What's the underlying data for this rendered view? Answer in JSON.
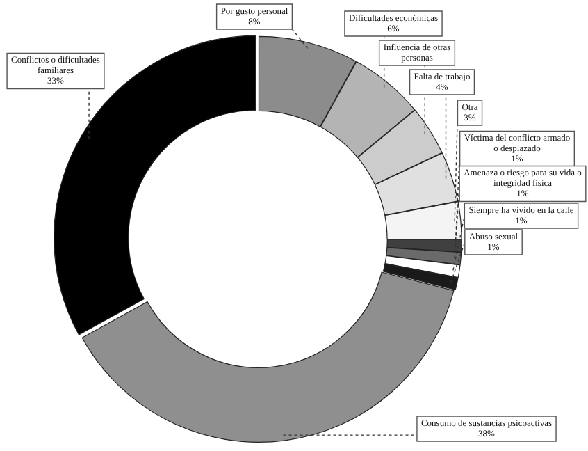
{
  "chart_data": {
    "type": "donut",
    "categories": [
      "Por gusto personal",
      "Dificultades económicas",
      "Influencia de otras personas",
      "Falta de trabajo",
      "Otra",
      "Víctima del conflicto armado o desplazado",
      "Amenaza o riesgo para su vida o integridad física",
      "Siempre ha vivido en la calle",
      "Abuso sexual",
      "Consumo de sustancias psicoactivas",
      "Conflictos o dificultades familiares"
    ],
    "values": [
      8,
      6,
      4,
      4,
      3,
      1,
      1,
      1,
      1,
      38,
      33
    ],
    "value_labels": [
      "8%",
      "6%",
      null,
      "4%",
      "3%",
      "1%",
      "1%",
      "1%",
      "1%",
      "38%",
      "33%"
    ],
    "colors": [
      "#8c8c8c",
      "#b4b4b4",
      "#cccccc",
      "#e0e0e0",
      "#f4f4f4",
      "#404040",
      "#6a6a6a",
      "#ffffff",
      "#1a1a1a",
      "#8f8f8f",
      "#000000"
    ],
    "legend": false
  }
}
